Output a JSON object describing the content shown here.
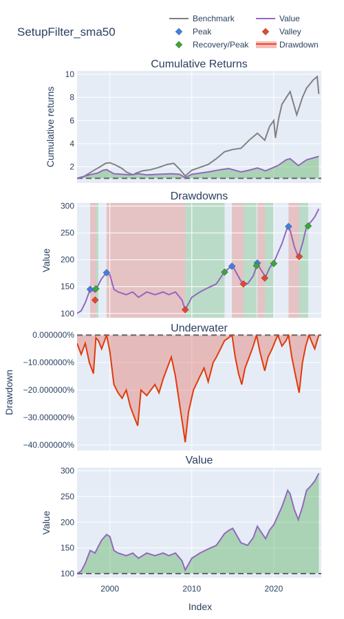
{
  "chart_data": {
    "type": "line",
    "title": "SetupFilter_sma50",
    "xlabel": "Index",
    "x_range": [
      1996.0,
      2025.8
    ],
    "x_ticks": [
      2000,
      2010,
      2020
    ],
    "legend": {
      "placement": "top-right",
      "entries": [
        {
          "label": "Benchmark",
          "kind": "line",
          "color": "#808080"
        },
        {
          "label": "Value",
          "kind": "line",
          "color": "#9467bd"
        },
        {
          "label": "Peak",
          "kind": "diamond",
          "color": "#3d7fe6"
        },
        {
          "label": "Valley",
          "kind": "diamond",
          "color": "#e6452e"
        },
        {
          "label": "Recovery/Peak",
          "kind": "diamond",
          "color": "#3aa63a"
        },
        {
          "label": "Drawdown",
          "kind": "band",
          "color": "#e6452e"
        }
      ]
    },
    "colors": {
      "benchmark": "#808080",
      "value": "#9467bd",
      "peak": "#3d7fe6",
      "valley": "#e6452e",
      "recovery": "#3aa63a",
      "drawdown_line": "#e03a0a",
      "plot_bg": "#e5ecf6"
    },
    "panels": [
      {
        "title": "Cumulative Returns",
        "ylabel": "Cumulative returns",
        "ylim": [
          0.6,
          10.3
        ],
        "yticks": [
          2,
          4,
          6,
          8,
          10
        ],
        "baseline": 1,
        "series": [
          {
            "name": "Benchmark",
            "x": [
              1996.0,
              1996.8,
              1997.5,
              1998.2,
              1998.8,
              1999.5,
              2000.0,
              2000.7,
              2001.5,
              2002.0,
              2002.8,
              2003.2,
              2004.0,
              2005.0,
              2006.0,
              2007.0,
              2007.8,
              2008.5,
              2009.2,
              2010.0,
              2011.0,
              2012.0,
              2013.0,
              2014.0,
              2015.0,
              2016.0,
              2017.0,
              2018.0,
              2018.9,
              2019.5,
              2020.0,
              2020.2,
              2020.6,
              2021.0,
              2022.0,
              2022.8,
              2023.5,
              2024.0,
              2024.8,
              2025.3,
              2025.5
            ],
            "y": [
              1.0,
              1.15,
              1.45,
              1.75,
              2.0,
              2.3,
              2.35,
              2.15,
              1.85,
              1.55,
              1.3,
              1.45,
              1.65,
              1.75,
              1.95,
              2.2,
              2.3,
              1.8,
              1.2,
              1.7,
              1.95,
              2.2,
              2.7,
              3.3,
              3.5,
              3.6,
              4.3,
              4.9,
              4.3,
              5.5,
              6.0,
              4.5,
              6.2,
              7.4,
              8.5,
              6.5,
              8.0,
              8.8,
              9.5,
              9.8,
              8.3
            ]
          },
          {
            "name": "Value",
            "x": [
              1996.0,
              1997.5,
              1998.5,
              1999.2,
              1999.6,
              2000.5,
              2001.5,
              2002.5,
              2003.5,
              2004.5,
              2006.0,
              2007.5,
              2008.5,
              2009.2,
              2010.0,
              2011.0,
              2012.0,
              2013.5,
              2014.5,
              2015.0,
              2016.0,
              2017.0,
              2018.0,
              2019.0,
              2020.0,
              2020.5,
              2021.5,
              2022.0,
              2022.5,
              2023.0,
              2023.5,
              2024.0,
              2025.0,
              2025.5
            ],
            "y": [
              1.0,
              1.3,
              1.45,
              1.7,
              1.75,
              1.4,
              1.35,
              1.3,
              1.4,
              1.3,
              1.35,
              1.4,
              1.35,
              1.05,
              1.35,
              1.45,
              1.55,
              1.75,
              1.85,
              1.75,
              1.55,
              1.7,
              1.9,
              1.65,
              1.95,
              2.1,
              2.6,
              2.7,
              2.4,
              2.1,
              2.35,
              2.6,
              2.8,
              2.9
            ]
          }
        ]
      },
      {
        "title": "Drawdowns",
        "ylabel": "Value",
        "ylim": [
          92,
          306
        ],
        "yticks": [
          100,
          150,
          200,
          250,
          300
        ],
        "series": [
          {
            "name": "Value",
            "x": [
              1996.0,
              1996.5,
              1997.0,
              1997.6,
              1998.2,
              1998.5,
              1999.0,
              1999.6,
              2000.0,
              2000.5,
              2001.0,
              2002.0,
              2002.8,
              2003.5,
              2004.5,
              2005.5,
              2006.5,
              2007.2,
              2008.0,
              2008.8,
              2009.2,
              2010.0,
              2011.0,
              2012.0,
              2013.0,
              2014.0,
              2014.6,
              2015.0,
              2016.0,
              2016.8,
              2017.5,
              2018.0,
              2018.5,
              2019.0,
              2019.5,
              2020.0,
              2021.0,
              2021.7,
              2022.0,
              2022.5,
              2023.0,
              2023.5,
              2024.0,
              2024.5,
              2025.0,
              2025.5
            ],
            "y": [
              100,
              105,
              120,
              145,
              140,
              150,
              165,
              176,
              172,
              145,
              140,
              135,
              140,
              130,
              140,
              135,
              140,
              135,
              140,
              125,
              107,
              130,
              140,
              148,
              155,
              178,
              185,
              188,
              160,
              155,
              170,
              192,
              180,
              168,
              185,
              195,
              230,
              262,
              255,
              225,
              205,
              230,
              262,
              270,
              280,
              295
            ]
          }
        ],
        "peaks": [
          {
            "x": 1997.6,
            "y": 145
          },
          {
            "x": 1999.6,
            "y": 176
          },
          {
            "x": 2014.9,
            "y": 188
          },
          {
            "x": 2018.0,
            "y": 194
          },
          {
            "x": 2021.8,
            "y": 262
          }
        ],
        "valleys": [
          {
            "x": 1998.2,
            "y": 125
          },
          {
            "x": 2009.2,
            "y": 107
          },
          {
            "x": 2016.3,
            "y": 155
          },
          {
            "x": 2018.9,
            "y": 166
          },
          {
            "x": 2023.1,
            "y": 206
          }
        ],
        "recoveries": [
          {
            "x": 1998.3,
            "y": 146
          },
          {
            "x": 2014.0,
            "y": 177
          },
          {
            "x": 2017.9,
            "y": 189
          },
          {
            "x": 2020.0,
            "y": 193
          },
          {
            "x": 2024.2,
            "y": 263
          }
        ],
        "drawdown_spans": [
          [
            1997.6,
            1998.3
          ],
          [
            1999.6,
            2009.2
          ],
          [
            2014.9,
            2016.3
          ],
          [
            2018.0,
            2018.9
          ],
          [
            2021.8,
            2023.1
          ]
        ],
        "recovery_spans": [
          [
            1998.3,
            1998.6
          ],
          [
            2009.2,
            2014.0
          ],
          [
            2016.3,
            2017.9
          ],
          [
            2018.9,
            2020.0
          ],
          [
            2023.1,
            2024.2
          ]
        ]
      },
      {
        "title": "Underwater",
        "ylabel": "Drawdown",
        "ylim": [
          -0.42,
          0.003
        ],
        "yticks": [
          0,
          -0.1,
          -0.2,
          -0.3,
          -0.4
        ],
        "ytick_labels": [
          "0.000000%",
          "−10.000000%",
          "−20.000000%",
          "−30.000000%",
          "−40.000000%"
        ],
        "series": [
          {
            "name": "Drawdown",
            "x": [
              1996.0,
              1996.5,
              1997.0,
              1997.5,
              1998.0,
              1998.3,
              1998.6,
              1999.0,
              1999.6,
              2000.0,
              2000.5,
              2001.0,
              2001.5,
              2002.0,
              2002.5,
              2003.0,
              2003.4,
              2003.8,
              2004.5,
              2005.0,
              2005.5,
              2006.0,
              2006.5,
              2007.0,
              2007.5,
              2008.0,
              2008.5,
              2009.0,
              2009.2,
              2009.6,
              2010.2,
              2011.0,
              2011.5,
              2012.0,
              2012.6,
              2013.0,
              2013.5,
              2014.0,
              2014.5,
              2014.9,
              2015.3,
              2015.7,
              2016.1,
              2016.5,
              2017.0,
              2017.5,
              2017.9,
              2018.3,
              2018.9,
              2019.3,
              2019.8,
              2020.2,
              2020.5,
              2021.0,
              2021.5,
              2021.8,
              2022.2,
              2022.6,
              2023.1,
              2023.5,
              2023.9,
              2024.3,
              2024.7,
              2025.0,
              2025.3,
              2025.5
            ],
            "y": [
              -0.03,
              -0.07,
              -0.03,
              -0.1,
              -0.14,
              -0.01,
              -0.02,
              -0.05,
              0.0,
              -0.06,
              -0.18,
              -0.21,
              -0.23,
              -0.2,
              -0.26,
              -0.3,
              -0.33,
              -0.2,
              -0.22,
              -0.2,
              -0.18,
              -0.21,
              -0.16,
              -0.12,
              -0.08,
              -0.15,
              -0.25,
              -0.35,
              -0.39,
              -0.28,
              -0.2,
              -0.15,
              -0.12,
              -0.17,
              -0.1,
              -0.08,
              -0.05,
              -0.02,
              -0.01,
              0.0,
              -0.08,
              -0.14,
              -0.18,
              -0.12,
              -0.08,
              -0.04,
              0.0,
              -0.06,
              -0.13,
              -0.08,
              -0.05,
              -0.02,
              0.0,
              -0.04,
              -0.02,
              0.0,
              -0.08,
              -0.14,
              -0.21,
              -0.1,
              -0.04,
              0.0,
              -0.03,
              -0.05,
              -0.02,
              0.0
            ]
          }
        ]
      },
      {
        "title": "Value",
        "ylabel": "Value",
        "ylim": [
          92,
          306
        ],
        "yticks": [
          100,
          150,
          200,
          250,
          300
        ],
        "baseline": 100,
        "series": [
          {
            "name": "Value",
            "x": [
              1996.0,
              1996.5,
              1997.0,
              1997.6,
              1998.2,
              1998.5,
              1999.0,
              1999.6,
              2000.0,
              2000.5,
              2001.0,
              2002.0,
              2002.8,
              2003.5,
              2004.5,
              2005.5,
              2006.5,
              2007.2,
              2008.0,
              2008.8,
              2009.2,
              2010.0,
              2011.0,
              2012.0,
              2013.0,
              2014.0,
              2014.6,
              2015.0,
              2016.0,
              2016.8,
              2017.5,
              2018.0,
              2018.5,
              2019.0,
              2019.5,
              2020.0,
              2021.0,
              2021.7,
              2022.0,
              2022.5,
              2023.0,
              2023.5,
              2024.0,
              2024.5,
              2025.0,
              2025.5
            ],
            "y": [
              100,
              105,
              120,
              145,
              140,
              150,
              165,
              176,
              172,
              145,
              140,
              135,
              140,
              130,
              140,
              135,
              140,
              135,
              140,
              125,
              107,
              130,
              140,
              148,
              155,
              178,
              185,
              188,
              160,
              155,
              170,
              192,
              180,
              168,
              185,
              195,
              230,
              262,
              255,
              225,
              205,
              230,
              262,
              270,
              280,
              295
            ]
          }
        ]
      }
    ]
  }
}
